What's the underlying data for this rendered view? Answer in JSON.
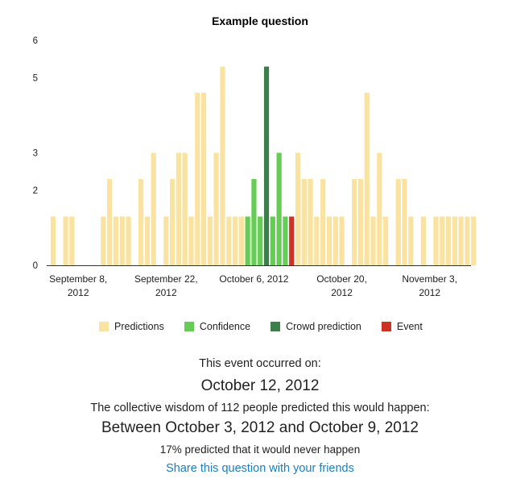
{
  "chart_data": {
    "type": "bar",
    "title": "Example question",
    "ylim": [
      0,
      6
    ],
    "yticks": [
      0,
      2,
      3,
      5,
      6
    ],
    "x_range": [
      "2012-09-04",
      "2012-11-07"
    ],
    "xticks": [
      {
        "date": "2012-09-08",
        "label_line1": "September 8,",
        "label_line2": "2012"
      },
      {
        "date": "2012-09-22",
        "label_line1": "September 22,",
        "label_line2": "2012"
      },
      {
        "date": "2012-10-06",
        "label_line1": "October 6, 2012",
        "label_line2": ""
      },
      {
        "date": "2012-10-20",
        "label_line1": "October 20,",
        "label_line2": "2012"
      },
      {
        "date": "2012-11-03",
        "label_line1": "November 3,",
        "label_line2": "2012"
      }
    ],
    "grid": false,
    "legend_position": "bottom",
    "series": [
      {
        "name": "Predictions",
        "color": "#fae3a0",
        "points": [
          {
            "date": "2012-09-04",
            "value": 1.3
          },
          {
            "date": "2012-09-06",
            "value": 1.3
          },
          {
            "date": "2012-09-07",
            "value": 1.3
          },
          {
            "date": "2012-09-12",
            "value": 1.3
          },
          {
            "date": "2012-09-13",
            "value": 2.3
          },
          {
            "date": "2012-09-14",
            "value": 1.3
          },
          {
            "date": "2012-09-15",
            "value": 1.3
          },
          {
            "date": "2012-09-16",
            "value": 1.3
          },
          {
            "date": "2012-09-18",
            "value": 2.3
          },
          {
            "date": "2012-09-19",
            "value": 1.3
          },
          {
            "date": "2012-09-20",
            "value": 3.0
          },
          {
            "date": "2012-09-22",
            "value": 1.3
          },
          {
            "date": "2012-09-23",
            "value": 2.3
          },
          {
            "date": "2012-09-24",
            "value": 3.0
          },
          {
            "date": "2012-09-25",
            "value": 3.0
          },
          {
            "date": "2012-09-26",
            "value": 1.3
          },
          {
            "date": "2012-09-27",
            "value": 4.6
          },
          {
            "date": "2012-09-28",
            "value": 4.6
          },
          {
            "date": "2012-09-29",
            "value": 1.3
          },
          {
            "date": "2012-09-30",
            "value": 3.0
          },
          {
            "date": "2012-10-01",
            "value": 5.3
          },
          {
            "date": "2012-10-02",
            "value": 1.3
          },
          {
            "date": "2012-10-03",
            "value": 1.3
          },
          {
            "date": "2012-10-04",
            "value": 1.3
          },
          {
            "date": "2012-10-13",
            "value": 3.0
          },
          {
            "date": "2012-10-14",
            "value": 2.3
          },
          {
            "date": "2012-10-15",
            "value": 2.3
          },
          {
            "date": "2012-10-16",
            "value": 1.3
          },
          {
            "date": "2012-10-17",
            "value": 2.3
          },
          {
            "date": "2012-10-18",
            "value": 1.3
          },
          {
            "date": "2012-10-19",
            "value": 1.3
          },
          {
            "date": "2012-10-20",
            "value": 1.3
          },
          {
            "date": "2012-10-22",
            "value": 2.3
          },
          {
            "date": "2012-10-23",
            "value": 2.3
          },
          {
            "date": "2012-10-24",
            "value": 4.6
          },
          {
            "date": "2012-10-25",
            "value": 1.3
          },
          {
            "date": "2012-10-26",
            "value": 3.0
          },
          {
            "date": "2012-10-27",
            "value": 1.3
          },
          {
            "date": "2012-10-29",
            "value": 2.3
          },
          {
            "date": "2012-10-30",
            "value": 2.3
          },
          {
            "date": "2012-10-31",
            "value": 1.3
          },
          {
            "date": "2012-11-02",
            "value": 1.3
          },
          {
            "date": "2012-11-04",
            "value": 1.3
          },
          {
            "date": "2012-11-05",
            "value": 1.3
          },
          {
            "date": "2012-11-06",
            "value": 1.3
          },
          {
            "date": "2012-11-07",
            "value": 1.3
          },
          {
            "date": "2012-11-08",
            "value": 1.3
          },
          {
            "date": "2012-11-09",
            "value": 1.3
          },
          {
            "date": "2012-11-10",
            "value": 1.3
          }
        ]
      },
      {
        "name": "Confidence",
        "color": "#66cc55",
        "points": [
          {
            "date": "2012-10-05",
            "value": 1.3
          },
          {
            "date": "2012-10-06",
            "value": 2.3
          },
          {
            "date": "2012-10-07",
            "value": 1.3
          },
          {
            "date": "2012-10-09",
            "value": 1.3
          },
          {
            "date": "2012-10-10",
            "value": 3.0
          },
          {
            "date": "2012-10-11",
            "value": 1.3
          }
        ]
      },
      {
        "name": "Crowd prediction",
        "color": "#3e7e4c",
        "points": [
          {
            "date": "2012-10-08",
            "value": 5.3
          }
        ]
      },
      {
        "name": "Event",
        "color": "#cc3322",
        "points": [
          {
            "date": "2012-10-12",
            "value": 1.3
          }
        ]
      }
    ]
  },
  "summary": {
    "occurred_label": "This event occurred on:",
    "occurred_date": "October 12, 2012",
    "wisdom_label": "The collective wisdom of 112 people predicted this would happen:",
    "range_text": "Between October 3, 2012 and October 9, 2012",
    "never_text": "17% predicted that it would never happen",
    "share_link": "Share this question with your friends"
  },
  "colors": {
    "link": "#1a7ec1",
    "axis": "#333333"
  }
}
